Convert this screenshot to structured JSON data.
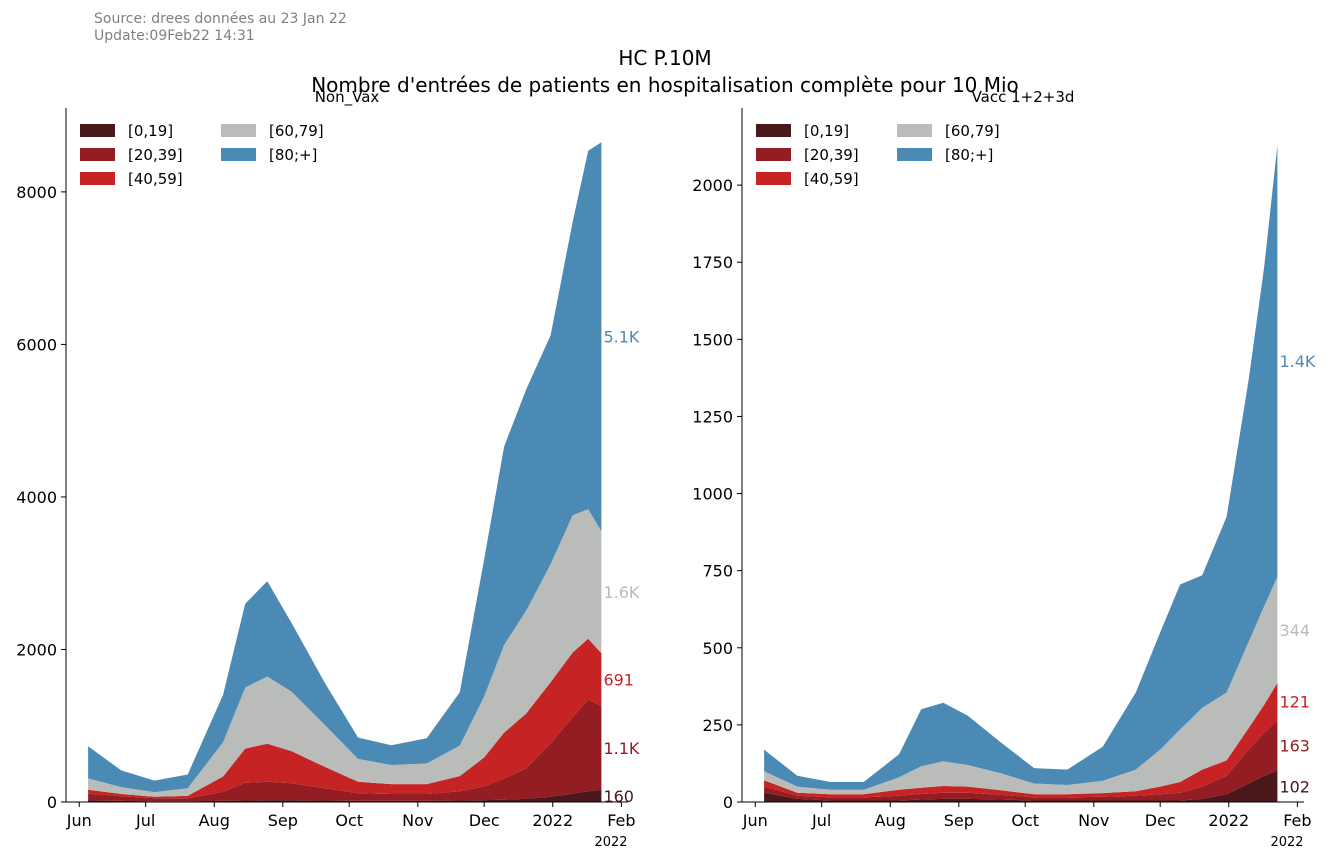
{
  "header": {
    "source_line1": "Source: drees données au 23 Jan 22",
    "source_line2": "Update:09Feb22 14:31",
    "title_line1": "HC P.10M",
    "title_line2": "Nombre d'entrées de patients en hospitalisation complète pour 10 Mio"
  },
  "colors": {
    "[0,19]": "#4a171b",
    "[20,39]": "#931d22",
    "[40,59]": "#c62424",
    "[60,79]": "#b9bcb9",
    "[80;+]": "#4c8ab6"
  },
  "chart_data": [
    {
      "type": "area",
      "stacked": true,
      "title": "Non_Vax",
      "x_tick_labels": [
        "Jun",
        "Jul",
        "Aug",
        "Sep",
        "Oct",
        "Nov",
        "Dec",
        "2022",
        "Feb"
      ],
      "x_offset_label": "2022",
      "ylim": [
        0,
        9100
      ],
      "yticks": [
        0,
        2000,
        4000,
        6000,
        8000
      ],
      "x_dates": [
        "2021-06-05",
        "2021-06-20",
        "2021-07-05",
        "2021-07-20",
        "2021-08-05",
        "2021-08-15",
        "2021-08-25",
        "2021-09-05",
        "2021-09-20",
        "2021-10-05",
        "2021-10-20",
        "2021-11-05",
        "2021-11-20",
        "2021-12-01",
        "2021-12-10",
        "2021-12-20",
        "2021-12-31",
        "2022-01-10",
        "2022-01-17",
        "2022-01-23"
      ],
      "series": [
        {
          "name": "[0,19]",
          "values": [
            20,
            15,
            10,
            10,
            15,
            20,
            25,
            25,
            20,
            15,
            15,
            15,
            20,
            25,
            30,
            40,
            70,
            110,
            140,
            160
          ]
        },
        {
          "name": "[20,39]",
          "values": [
            90,
            60,
            40,
            40,
            120,
            230,
            240,
            220,
            160,
            100,
            90,
            90,
            120,
            180,
            280,
            400,
            700,
            1000,
            1200,
            1100
          ]
        },
        {
          "name": "[40,59]",
          "values": [
            50,
            30,
            20,
            30,
            200,
            450,
            500,
            420,
            280,
            150,
            130,
            130,
            200,
            380,
            600,
            720,
            800,
            850,
            800,
            691
          ]
        },
        {
          "name": "[60,79]",
          "values": [
            150,
            90,
            60,
            100,
            450,
            800,
            880,
            780,
            550,
            300,
            250,
            270,
            400,
            800,
            1150,
            1350,
            1550,
            1800,
            1700,
            1600
          ]
        },
        {
          "name": "[80;+]",
          "values": [
            420,
            220,
            150,
            180,
            620,
            1100,
            1250,
            900,
            550,
            280,
            260,
            330,
            700,
            1800,
            2600,
            2900,
            3000,
            3850,
            4700,
            5100
          ]
        }
      ],
      "end_labels": [
        "160",
        "1.1K",
        "691",
        "1.6K",
        "5.1K"
      ],
      "legend": "top-left"
    },
    {
      "type": "area",
      "stacked": true,
      "title": "Vacc 1+2+3d",
      "x_tick_labels": [
        "Jun",
        "Jul",
        "Aug",
        "Sep",
        "Oct",
        "Nov",
        "Dec",
        "2022",
        "Feb"
      ],
      "x_offset_label": "2022",
      "ylim": [
        0,
        2250
      ],
      "yticks": [
        0,
        250,
        500,
        750,
        1000,
        1250,
        1500,
        1750,
        2000
      ],
      "x_dates": [
        "2021-06-05",
        "2021-06-20",
        "2021-07-05",
        "2021-07-20",
        "2021-08-05",
        "2021-08-15",
        "2021-08-25",
        "2021-09-05",
        "2021-09-20",
        "2021-10-05",
        "2021-10-20",
        "2021-11-05",
        "2021-11-20",
        "2021-12-01",
        "2021-12-10",
        "2021-12-20",
        "2021-12-31",
        "2022-01-10",
        "2022-01-17",
        "2022-01-23"
      ],
      "series": [
        {
          "name": "[0,19]",
          "values": [
            30,
            10,
            5,
            5,
            5,
            8,
            10,
            10,
            8,
            5,
            5,
            5,
            5,
            5,
            5,
            10,
            25,
            60,
            85,
            102
          ]
        },
        {
          "name": "[20,39]",
          "values": [
            20,
            10,
            10,
            10,
            15,
            18,
            20,
            20,
            15,
            10,
            10,
            12,
            15,
            20,
            25,
            40,
            60,
            110,
            140,
            163
          ]
        },
        {
          "name": "[40,59]",
          "values": [
            20,
            10,
            10,
            10,
            20,
            20,
            22,
            20,
            15,
            10,
            10,
            12,
            15,
            25,
            35,
            55,
            50,
            70,
            90,
            121
          ]
        },
        {
          "name": "[60,79]",
          "values": [
            30,
            20,
            15,
            15,
            40,
            70,
            80,
            70,
            55,
            35,
            30,
            40,
            70,
            120,
            170,
            200,
            220,
            280,
            320,
            344
          ]
        },
        {
          "name": "[80;+]",
          "values": [
            70,
            35,
            25,
            25,
            75,
            185,
            190,
            160,
            100,
            50,
            50,
            110,
            250,
            380,
            470,
            430,
            570,
            850,
            1100,
            1400
          ]
        }
      ],
      "end_labels": [
        "102",
        "163",
        "121",
        "344",
        "1.4K"
      ],
      "legend": "top-left"
    }
  ]
}
